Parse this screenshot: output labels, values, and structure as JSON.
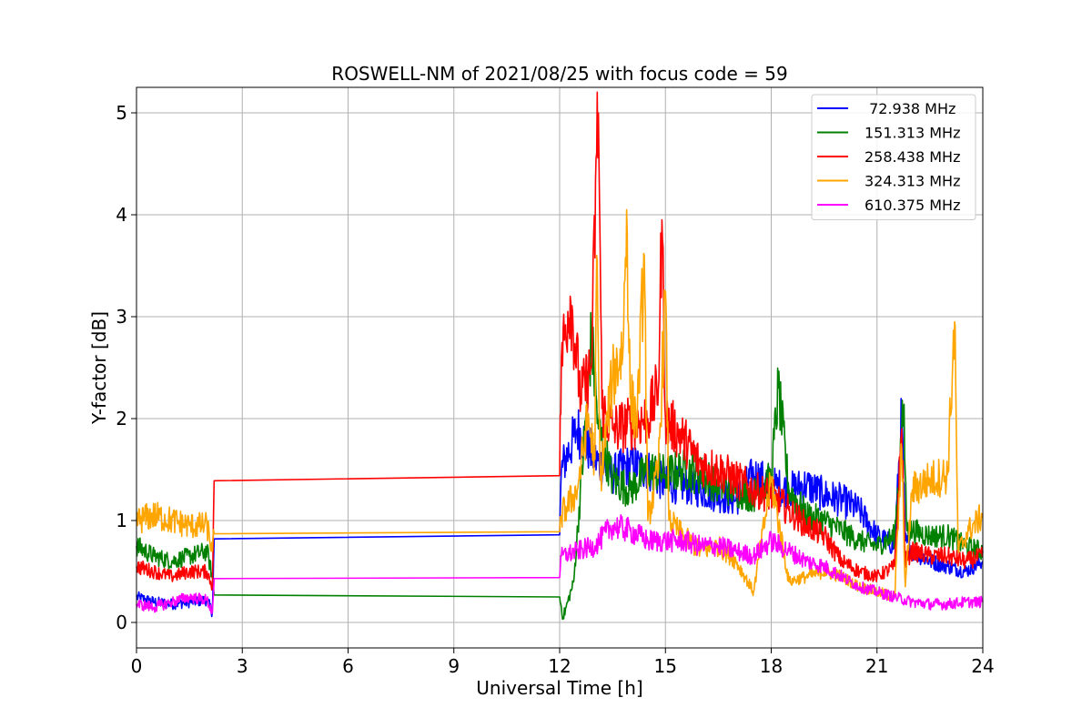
{
  "chart_data": {
    "type": "line",
    "title": "ROSWELL-NM of 2021/08/25 with focus code = 59",
    "xlabel": "Universal Time [h]",
    "ylabel": "Y-factor [dB]",
    "xlim": [
      0,
      24
    ],
    "ylim": [
      -0.25,
      5.25
    ],
    "xticks": [
      0,
      3,
      6,
      9,
      12,
      15,
      18,
      21,
      24
    ],
    "yticks": [
      0,
      1,
      2,
      3,
      4,
      5
    ],
    "xtick_labels": [
      "0",
      "3",
      "6",
      "9",
      "12",
      "15",
      "18",
      "21",
      "24"
    ],
    "ytick_labels": [
      "0",
      "1",
      "2",
      "3",
      "4",
      "5"
    ],
    "grid": true,
    "legend_position": "top-right",
    "series": [
      {
        "name": " 72.938 MHz",
        "color": "#0000ff",
        "points": [
          [
            0,
            0.25
          ],
          [
            0.5,
            0.2
          ],
          [
            1,
            0.18
          ],
          [
            1.5,
            0.2
          ],
          [
            2.0,
            0.22
          ],
          [
            2.15,
            0.1
          ],
          [
            2.2,
            0.82
          ],
          [
            12,
            0.86
          ],
          [
            12.05,
            1.5
          ],
          [
            12.5,
            1.9
          ],
          [
            13,
            1.6
          ],
          [
            13.5,
            1.45
          ],
          [
            14,
            1.55
          ],
          [
            14.5,
            1.5
          ],
          [
            15,
            1.35
          ],
          [
            15.5,
            1.35
          ],
          [
            16,
            1.3
          ],
          [
            16.5,
            1.25
          ],
          [
            17,
            1.2
          ],
          [
            17.5,
            1.45
          ],
          [
            18,
            1.35
          ],
          [
            18.5,
            1.3
          ],
          [
            19,
            1.35
          ],
          [
            19.5,
            1.25
          ],
          [
            20,
            1.2
          ],
          [
            20.5,
            1.1
          ],
          [
            21,
            0.85
          ],
          [
            21.5,
            0.75
          ],
          [
            21.7,
            2.05
          ],
          [
            21.8,
            0.8
          ],
          [
            22,
            0.7
          ],
          [
            22.5,
            0.6
          ],
          [
            23,
            0.55
          ],
          [
            23.5,
            0.5
          ],
          [
            24,
            0.6
          ]
        ]
      },
      {
        "name": "151.313 MHz",
        "color": "#008000",
        "points": [
          [
            0,
            0.75
          ],
          [
            0.5,
            0.65
          ],
          [
            1,
            0.6
          ],
          [
            1.5,
            0.65
          ],
          [
            2.0,
            0.7
          ],
          [
            2.15,
            0.45
          ],
          [
            2.2,
            0.27
          ],
          [
            12,
            0.25
          ],
          [
            12.1,
            0.05
          ],
          [
            12.4,
            0.4
          ],
          [
            12.7,
            1.8
          ],
          [
            12.9,
            2.8
          ],
          [
            13.1,
            1.9
          ],
          [
            13.5,
            1.4
          ],
          [
            14,
            1.3
          ],
          [
            14.5,
            1.5
          ],
          [
            15,
            1.45
          ],
          [
            15.5,
            1.5
          ],
          [
            16,
            1.45
          ],
          [
            16.5,
            1.35
          ],
          [
            17,
            1.3
          ],
          [
            17.5,
            1.25
          ],
          [
            18,
            1.4
          ],
          [
            18.2,
            2.3
          ],
          [
            18.5,
            1.3
          ],
          [
            19,
            1.05
          ],
          [
            19.5,
            1.0
          ],
          [
            20,
            0.9
          ],
          [
            20.5,
            0.8
          ],
          [
            21,
            0.75
          ],
          [
            21.5,
            0.85
          ],
          [
            21.75,
            2.1
          ],
          [
            21.85,
            0.9
          ],
          [
            22,
            0.9
          ],
          [
            22.5,
            0.85
          ],
          [
            23,
            0.85
          ],
          [
            23.5,
            0.75
          ],
          [
            24,
            0.7
          ]
        ]
      },
      {
        "name": "258.438 MHz",
        "color": "#ff0000",
        "points": [
          [
            0,
            0.55
          ],
          [
            0.5,
            0.5
          ],
          [
            1,
            0.45
          ],
          [
            1.5,
            0.5
          ],
          [
            2.0,
            0.5
          ],
          [
            2.15,
            0.35
          ],
          [
            2.2,
            1.39
          ],
          [
            12,
            1.44
          ],
          [
            12.05,
            2.6
          ],
          [
            12.3,
            3.2
          ],
          [
            12.6,
            2.2
          ],
          [
            12.9,
            2.5
          ],
          [
            13.05,
            4.6
          ],
          [
            13.1,
            5.0
          ],
          [
            13.2,
            2.1
          ],
          [
            13.5,
            1.9
          ],
          [
            14,
            1.95
          ],
          [
            14.5,
            2.0
          ],
          [
            14.8,
            2.3
          ],
          [
            14.9,
            3.95
          ],
          [
            15.0,
            2.0
          ],
          [
            15.5,
            1.8
          ],
          [
            16,
            1.55
          ],
          [
            16.5,
            1.5
          ],
          [
            17,
            1.4
          ],
          [
            17.5,
            1.3
          ],
          [
            18,
            1.25
          ],
          [
            18.5,
            1.1
          ],
          [
            19,
            0.95
          ],
          [
            19.5,
            0.85
          ],
          [
            20,
            0.6
          ],
          [
            20.5,
            0.5
          ],
          [
            21,
            0.45
          ],
          [
            21.5,
            0.55
          ],
          [
            21.7,
            1.9
          ],
          [
            21.8,
            0.6
          ],
          [
            22,
            0.7
          ],
          [
            22.5,
            0.65
          ],
          [
            23,
            0.65
          ],
          [
            23.5,
            0.6
          ],
          [
            24,
            0.65
          ]
        ]
      },
      {
        "name": "324.313 MHz",
        "color": "#ffa500",
        "points": [
          [
            0,
            1.0
          ],
          [
            0.5,
            1.05
          ],
          [
            1,
            1.0
          ],
          [
            1.5,
            0.95
          ],
          [
            2.0,
            0.95
          ],
          [
            2.15,
            0.7
          ],
          [
            2.2,
            0.87
          ],
          [
            12,
            0.89
          ],
          [
            12.05,
            1.05
          ],
          [
            12.5,
            1.3
          ],
          [
            12.8,
            2.0
          ],
          [
            13.0,
            1.6
          ],
          [
            13.05,
            3.6
          ],
          [
            13.15,
            1.4
          ],
          [
            13.5,
            2.4
          ],
          [
            13.8,
            2.7
          ],
          [
            13.9,
            4.05
          ],
          [
            14.0,
            2.2
          ],
          [
            14.2,
            2.0
          ],
          [
            14.4,
            3.6
          ],
          [
            14.5,
            1.0
          ],
          [
            14.8,
            1.5
          ],
          [
            15.0,
            3.25
          ],
          [
            15.1,
            1.0
          ],
          [
            15.5,
            0.85
          ],
          [
            16,
            0.7
          ],
          [
            16.5,
            0.75
          ],
          [
            17,
            0.6
          ],
          [
            17.5,
            0.3
          ],
          [
            18,
            1.4
          ],
          [
            18.5,
            0.4
          ],
          [
            19,
            0.45
          ],
          [
            19.5,
            0.5
          ],
          [
            20,
            0.45
          ],
          [
            20.5,
            0.35
          ],
          [
            21,
            0.3
          ],
          [
            21.5,
            0.25
          ],
          [
            21.7,
            1.7
          ],
          [
            21.8,
            0.35
          ],
          [
            22,
            1.3
          ],
          [
            22.5,
            1.4
          ],
          [
            23,
            1.45
          ],
          [
            23.2,
            2.95
          ],
          [
            23.3,
            0.7
          ],
          [
            23.6,
            0.9
          ],
          [
            24,
            1.05
          ]
        ]
      },
      {
        "name": "610.375 MHz",
        "color": "#ff00ff",
        "points": [
          [
            0,
            0.18
          ],
          [
            0.5,
            0.15
          ],
          [
            1,
            0.2
          ],
          [
            1.5,
            0.25
          ],
          [
            2.0,
            0.22
          ],
          [
            2.15,
            0.1
          ],
          [
            2.2,
            0.43
          ],
          [
            12,
            0.44
          ],
          [
            12.05,
            0.65
          ],
          [
            12.5,
            0.7
          ],
          [
            13,
            0.75
          ],
          [
            13.5,
            0.95
          ],
          [
            14,
            0.9
          ],
          [
            14.5,
            0.8
          ],
          [
            15,
            0.8
          ],
          [
            15.5,
            0.8
          ],
          [
            16,
            0.75
          ],
          [
            16.5,
            0.75
          ],
          [
            17,
            0.7
          ],
          [
            17.5,
            0.65
          ],
          [
            18,
            0.8
          ],
          [
            18.5,
            0.7
          ],
          [
            19,
            0.6
          ],
          [
            19.5,
            0.55
          ],
          [
            20,
            0.45
          ],
          [
            20.5,
            0.35
          ],
          [
            21,
            0.3
          ],
          [
            21.5,
            0.25
          ],
          [
            22,
            0.2
          ],
          [
            22.5,
            0.18
          ],
          [
            23,
            0.18
          ],
          [
            23.5,
            0.2
          ],
          [
            24,
            0.2
          ]
        ]
      }
    ]
  }
}
